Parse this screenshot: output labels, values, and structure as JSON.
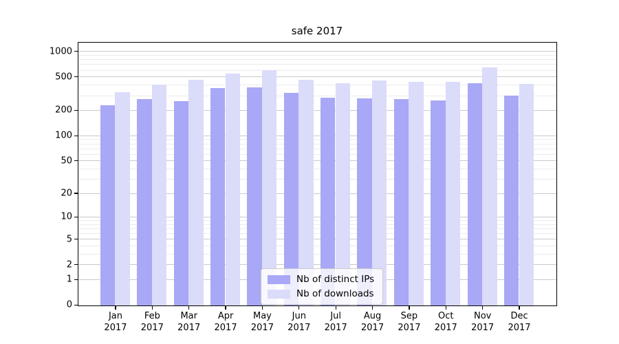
{
  "title": "safe 2017",
  "legend": {
    "items": [
      {
        "label": "Nb of distinct IPs",
        "color": "#a8a8f6"
      },
      {
        "label": "Nb of downloads",
        "color": "#dbdbfa"
      }
    ]
  },
  "axes": {
    "y_tick_labels": [
      "0",
      "1",
      "2",
      "5",
      "10",
      "20",
      "50",
      "100",
      "200",
      "500",
      "1000"
    ],
    "x_year_label": "2017"
  },
  "chart_data": {
    "type": "bar",
    "title": "safe 2017",
    "xlabel": "",
    "ylabel": "",
    "yscale": "symlog",
    "ylim": [
      0,
      1258
    ],
    "yticks": [
      0,
      1,
      2,
      5,
      10,
      20,
      50,
      100,
      200,
      500,
      1000
    ],
    "minor_yticks": [
      3,
      4,
      6,
      7,
      8,
      9,
      30,
      40,
      60,
      70,
      80,
      90,
      300,
      400,
      600,
      700,
      800,
      900
    ],
    "grid": "horizontal",
    "legend_position": "lower center",
    "categories": [
      "Jan",
      "Feb",
      "Mar",
      "Apr",
      "May",
      "Jun",
      "Jul",
      "Aug",
      "Sep",
      "Oct",
      "Nov",
      "Dec"
    ],
    "year": "2017",
    "series": [
      {
        "name": "Nb of distinct IPs",
        "color": "#a8a8f6",
        "values": [
          231,
          276,
          263,
          370,
          377,
          327,
          285,
          279,
          274,
          266,
          427,
          303
        ]
      },
      {
        "name": "Nb of downloads",
        "color": "#dbdbfa",
        "values": [
          333,
          406,
          465,
          554,
          608,
          465,
          427,
          462,
          443,
          445,
          655,
          419
        ]
      }
    ]
  }
}
